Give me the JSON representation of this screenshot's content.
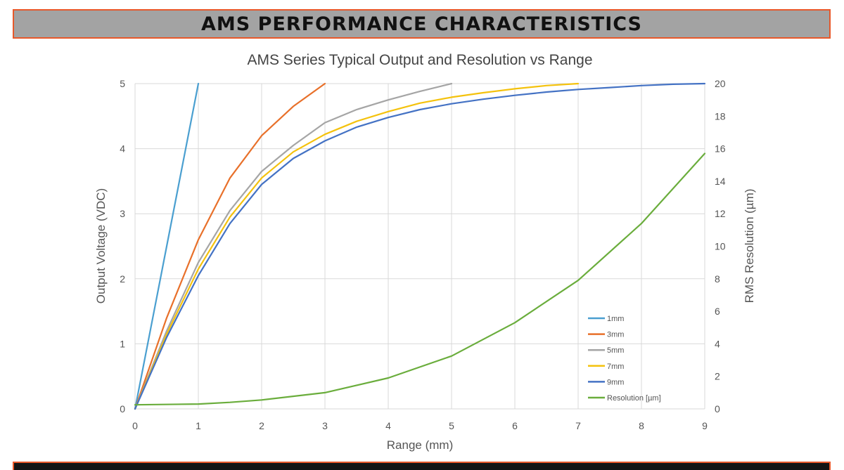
{
  "banner": {
    "title": "AMS PERFORMANCE CHARACTERISTICS"
  },
  "colors": {
    "banner_bg": "#a3a3a3",
    "accent_orange": "#e8582a",
    "footer_bg": "#141414",
    "grid": "#d9d9d9"
  },
  "chart_data": {
    "type": "line",
    "title": "AMS Series Typical Output and Resolution vs Range",
    "xlabel": "Range (mm)",
    "ylabel": "Output Voltage (VDC)",
    "y2label": "RMS Resolution (µm)",
    "xlim": [
      0,
      9
    ],
    "ylim": [
      0,
      5
    ],
    "y2lim": [
      0,
      20
    ],
    "xticks": [
      0,
      1,
      2,
      3,
      4,
      5,
      6,
      7,
      8,
      9
    ],
    "yticks": [
      0,
      1,
      2,
      3,
      4,
      5
    ],
    "y2ticks": [
      0,
      2,
      4,
      6,
      8,
      10,
      12,
      14,
      16,
      18,
      20
    ],
    "grid": true,
    "legend_position": "bottom-right",
    "series": [
      {
        "name": "1mm",
        "axis": "left",
        "color": "#4a9fd0",
        "x": [
          0,
          0.25,
          0.5,
          0.75,
          1.0
        ],
        "y": [
          0,
          1.25,
          2.5,
          3.75,
          5.0
        ]
      },
      {
        "name": "3mm",
        "axis": "left",
        "color": "#e8702a",
        "x": [
          0,
          0.5,
          1.0,
          1.5,
          2.0,
          2.5,
          3.0
        ],
        "y": [
          0,
          1.4,
          2.6,
          3.55,
          4.2,
          4.65,
          5.0
        ]
      },
      {
        "name": "5mm",
        "axis": "left",
        "color": "#a5a5a5",
        "x": [
          0,
          0.5,
          1.0,
          1.5,
          2.0,
          2.5,
          3.0,
          3.5,
          4.0,
          4.5,
          5.0
        ],
        "y": [
          0,
          1.2,
          2.25,
          3.05,
          3.65,
          4.05,
          4.4,
          4.6,
          4.75,
          4.88,
          5.0
        ]
      },
      {
        "name": "7mm",
        "axis": "left",
        "color": "#f4c20d",
        "x": [
          0,
          0.5,
          1.0,
          1.5,
          2.0,
          2.5,
          3.0,
          3.5,
          4.0,
          4.5,
          5.0,
          5.5,
          6.0,
          6.5,
          7.0
        ],
        "y": [
          0,
          1.15,
          2.15,
          2.95,
          3.55,
          3.95,
          4.22,
          4.42,
          4.57,
          4.7,
          4.79,
          4.86,
          4.92,
          4.97,
          5.0
        ]
      },
      {
        "name": "9mm",
        "axis": "left",
        "color": "#4472c4",
        "x": [
          0,
          0.5,
          1.0,
          1.5,
          2.0,
          2.5,
          3.0,
          3.5,
          4.0,
          4.5,
          5.0,
          5.5,
          6.0,
          6.5,
          7.0,
          7.5,
          8.0,
          8.5,
          9.0
        ],
        "y": [
          0,
          1.1,
          2.05,
          2.85,
          3.45,
          3.85,
          4.12,
          4.33,
          4.48,
          4.6,
          4.69,
          4.76,
          4.82,
          4.87,
          4.91,
          4.94,
          4.97,
          4.99,
          5.0
        ]
      },
      {
        "name": "Resolution [µm]",
        "axis": "right",
        "color": "#6aad3c",
        "x": [
          0,
          1.0,
          1.5,
          2.0,
          3.0,
          4.0,
          5.0,
          6.0,
          7.0,
          8.0,
          9.0
        ],
        "y": [
          0.25,
          0.3,
          0.4,
          0.55,
          1.0,
          1.9,
          3.25,
          5.3,
          7.9,
          11.4,
          15.7
        ]
      }
    ]
  }
}
